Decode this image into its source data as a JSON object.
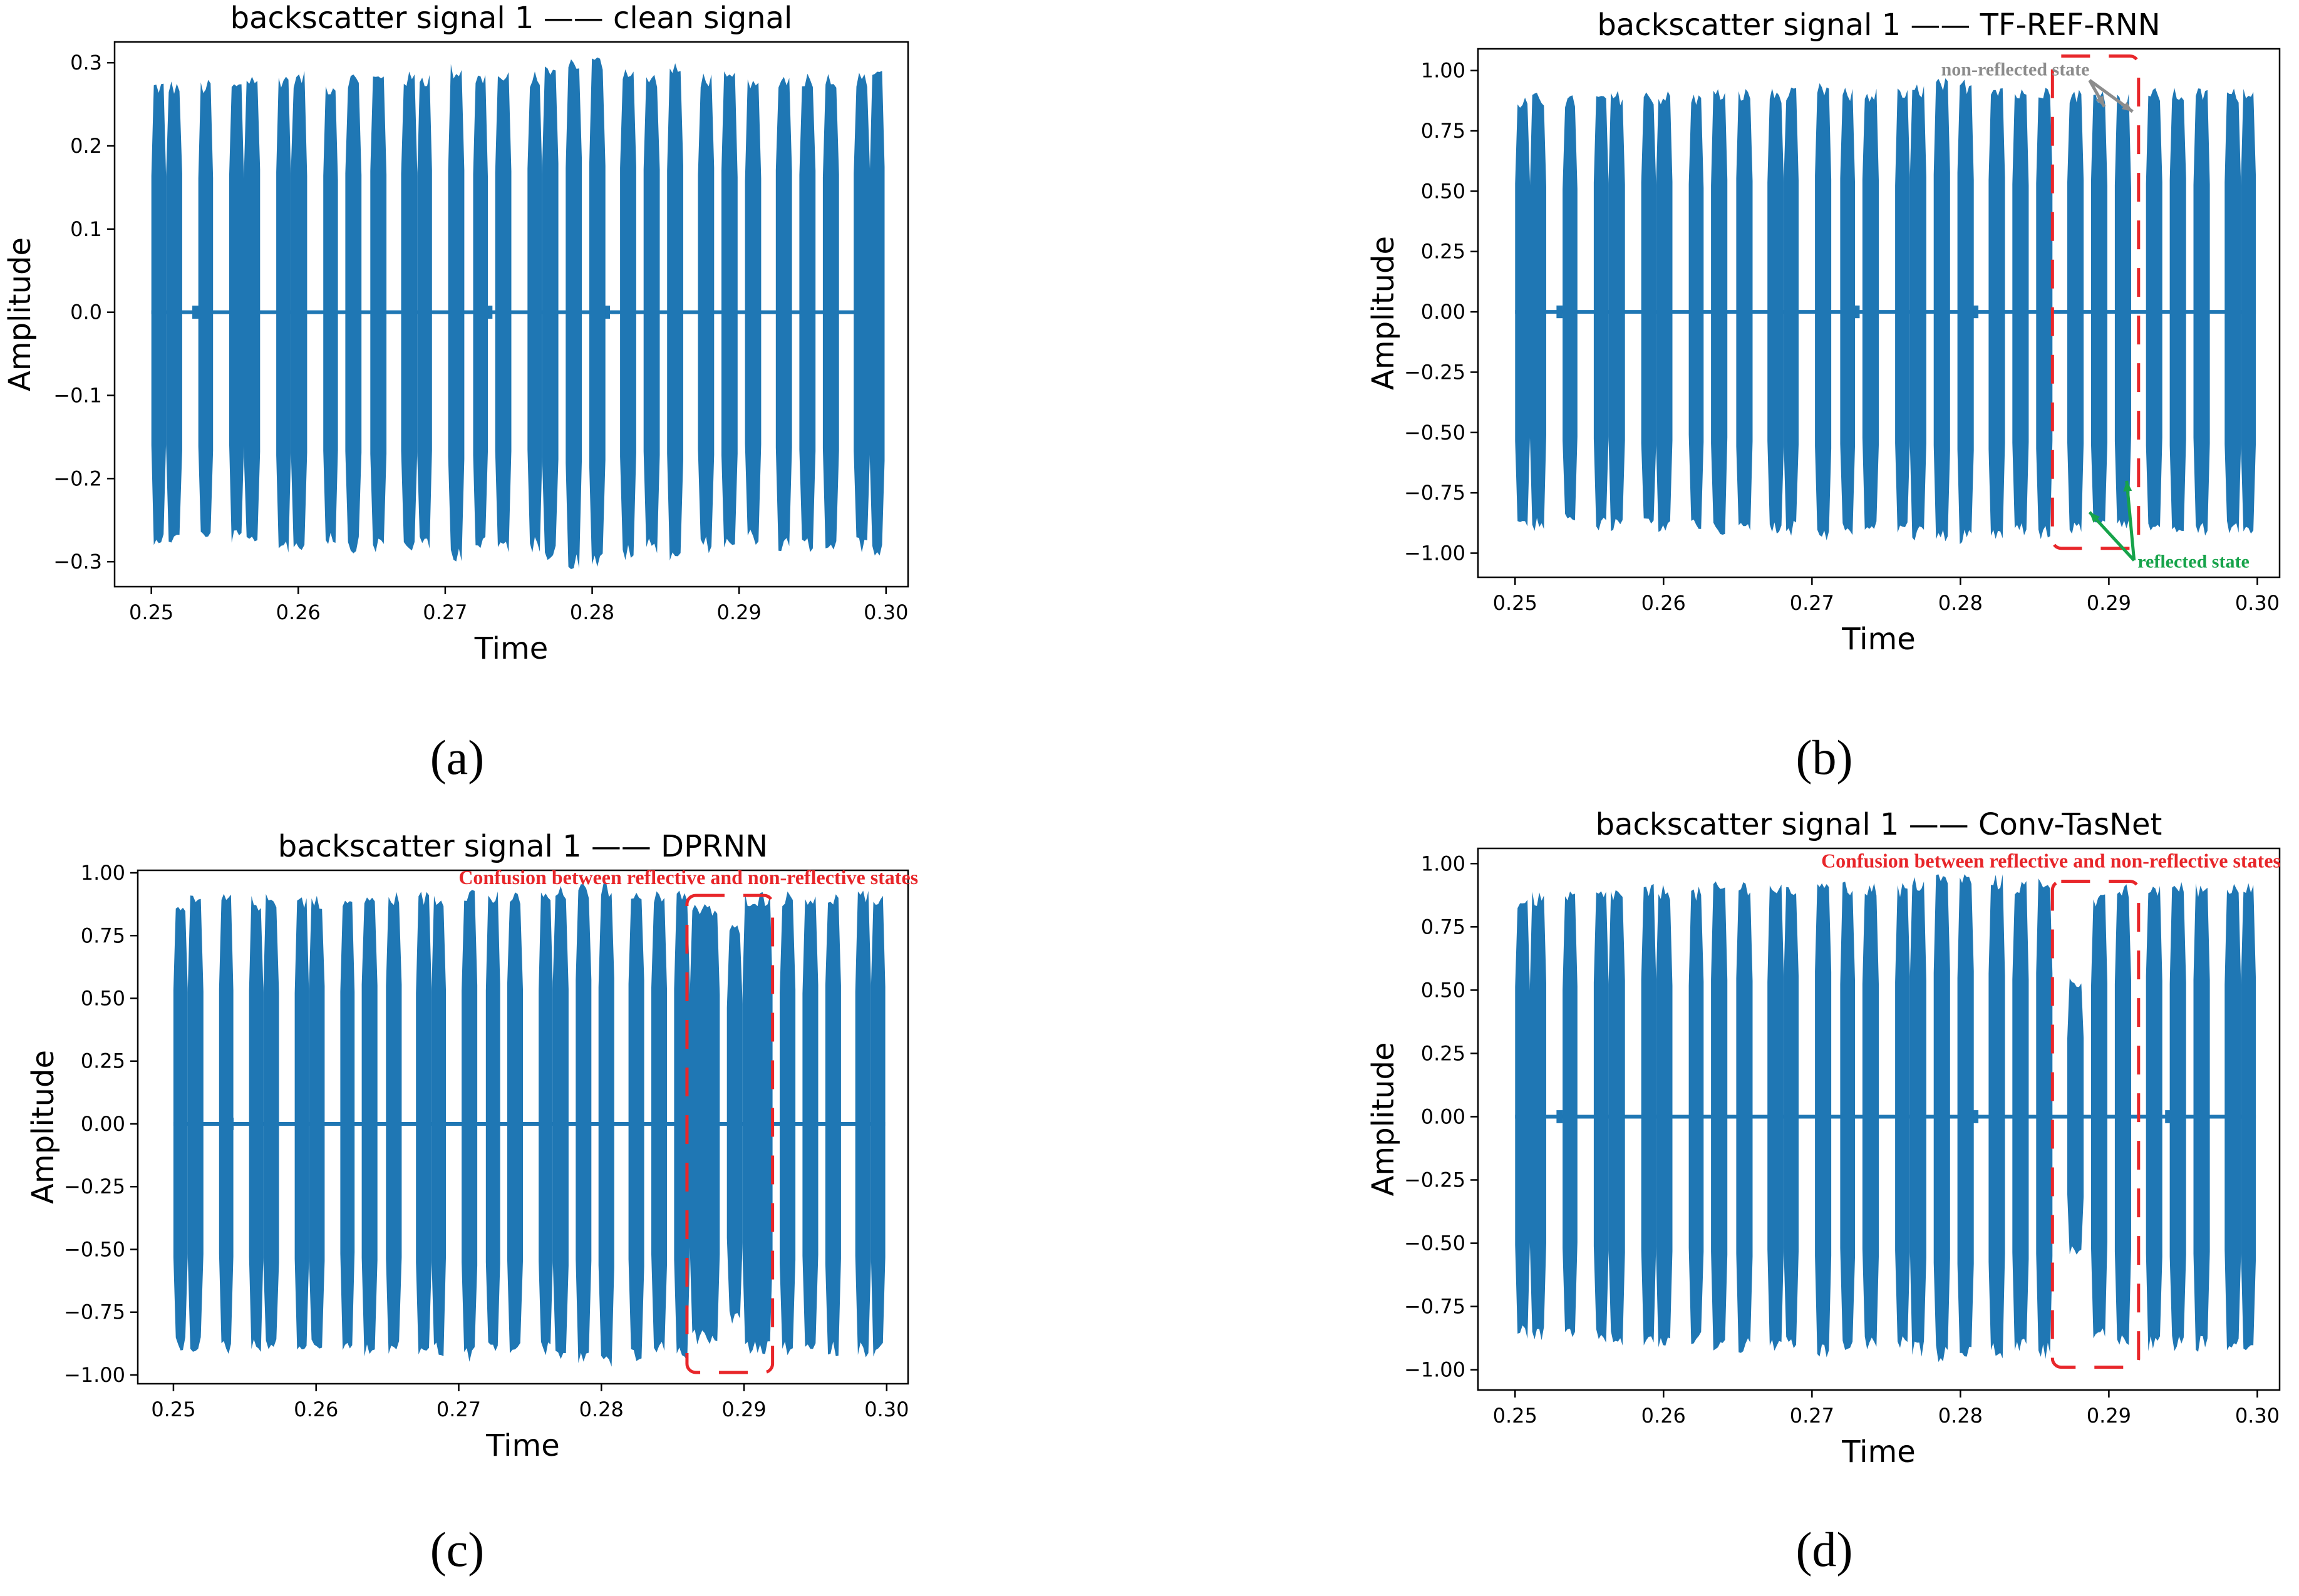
{
  "colors": {
    "signal": "#1f77b4",
    "annotation_red": "#e8262a",
    "annotation_green": "#16a34a",
    "annotation_grey": "#8c8c8c",
    "axis": "#000000"
  },
  "chart_data": [
    {
      "id": "a",
      "type": "line",
      "panel_label": "(a)",
      "title": "backscatter signal 1 —— clean signal",
      "xlabel": "Time",
      "ylabel": "Amplitude",
      "xlim": [
        0.2475,
        0.3015
      ],
      "ylim": [
        -0.33,
        0.325
      ],
      "xticks": [
        0.25,
        0.26,
        0.27,
        0.28,
        0.29,
        0.3
      ],
      "xtick_labels": [
        "0.25",
        "0.26",
        "0.27",
        "0.28",
        "0.29",
        "0.30"
      ],
      "yticks": [
        -0.3,
        -0.2,
        -0.1,
        0.0,
        0.1,
        0.2,
        0.3
      ],
      "ytick_labels": [
        "−0.3",
        "−0.2",
        "−0.1",
        "0.0",
        "0.1",
        "0.2",
        "0.3"
      ],
      "series": [
        {
          "name": "signal",
          "description": "pulse bursts [start, end, amplitude]",
          "bursts": [
            [
              0.25,
              0.251,
              0.28
            ],
            [
              0.251,
              0.2521,
              0.28
            ],
            [
              0.2532,
              0.2542,
              0.28
            ],
            [
              0.2553,
              0.2563,
              0.28
            ],
            [
              0.2563,
              0.2574,
              0.29
            ],
            [
              0.2585,
              0.2595,
              0.29
            ],
            [
              0.2595,
              0.2606,
              0.29
            ],
            [
              0.2617,
              0.2627,
              0.28
            ],
            [
              0.2632,
              0.2643,
              0.29
            ],
            [
              0.2649,
              0.266,
              0.29
            ],
            [
              0.267,
              0.2681,
              0.29
            ],
            [
              0.2681,
              0.2691,
              0.29
            ],
            [
              0.2702,
              0.2713,
              0.3
            ],
            [
              0.2719,
              0.2729,
              0.29
            ],
            [
              0.2734,
              0.2745,
              0.29
            ],
            [
              0.2756,
              0.2766,
              0.29
            ],
            [
              0.2766,
              0.2777,
              0.3
            ],
            [
              0.2782,
              0.2793,
              0.31
            ],
            [
              0.2798,
              0.2809,
              0.31
            ],
            [
              0.2819,
              0.283,
              0.3
            ],
            [
              0.2835,
              0.2846,
              0.29
            ],
            [
              0.2851,
              0.2862,
              0.3
            ],
            [
              0.2872,
              0.2883,
              0.29
            ],
            [
              0.2888,
              0.2899,
              0.29
            ],
            [
              0.2904,
              0.2915,
              0.28
            ],
            [
              0.2925,
              0.2936,
              0.29
            ],
            [
              0.2941,
              0.2952,
              0.29
            ],
            [
              0.2957,
              0.2968,
              0.29
            ],
            [
              0.2978,
              0.2989,
              0.29
            ],
            [
              0.2989,
              0.2999,
              0.3
            ]
          ],
          "baseline_noise": 0.005,
          "baseline_blips": [
            0.253,
            0.264,
            0.273,
            0.281
          ]
        }
      ],
      "annotations": []
    },
    {
      "id": "b",
      "type": "line",
      "panel_label": "(b)",
      "title": "backscatter signal 1 —— TF-REF-RNN",
      "xlabel": "Time",
      "ylabel": "Amplitude",
      "xlim": [
        0.2475,
        0.3015
      ],
      "ylim": [
        -1.1,
        1.09
      ],
      "xticks": [
        0.25,
        0.26,
        0.27,
        0.28,
        0.29,
        0.3
      ],
      "xtick_labels": [
        "0.25",
        "0.26",
        "0.27",
        "0.28",
        "0.29",
        "0.30"
      ],
      "yticks": [
        -1.0,
        -0.75,
        -0.5,
        -0.25,
        0.0,
        0.25,
        0.5,
        0.75,
        1.0
      ],
      "ytick_labels": [
        "−1.00",
        "−0.75",
        "−0.50",
        "−0.25",
        "0.00",
        "0.25",
        "0.50",
        "0.75",
        "1.00"
      ],
      "series": [
        {
          "name": "signal",
          "description": "pulse bursts [start, end, amplitude]",
          "bursts": [
            [
              0.25,
              0.251,
              0.9
            ],
            [
              0.251,
              0.2521,
              0.91
            ],
            [
              0.2532,
              0.2542,
              0.9
            ],
            [
              0.2553,
              0.2563,
              0.91
            ],
            [
              0.2563,
              0.2574,
              0.92
            ],
            [
              0.2585,
              0.2595,
              0.92
            ],
            [
              0.2595,
              0.2606,
              0.92
            ],
            [
              0.2617,
              0.2627,
              0.91
            ],
            [
              0.2632,
              0.2643,
              0.93
            ],
            [
              0.2649,
              0.266,
              0.93
            ],
            [
              0.267,
              0.2681,
              0.93
            ],
            [
              0.2681,
              0.2691,
              0.93
            ],
            [
              0.2702,
              0.2713,
              0.95
            ],
            [
              0.2719,
              0.2729,
              0.93
            ],
            [
              0.2734,
              0.2745,
              0.93
            ],
            [
              0.2756,
              0.2766,
              0.93
            ],
            [
              0.2766,
              0.2777,
              0.95
            ],
            [
              0.2782,
              0.2793,
              0.97
            ],
            [
              0.2798,
              0.2809,
              0.97
            ],
            [
              0.2819,
              0.283,
              0.96
            ],
            [
              0.2835,
              0.2846,
              0.93
            ],
            [
              0.2851,
              0.2862,
              0.95
            ],
            [
              0.2872,
              0.2883,
              0.93
            ],
            [
              0.2888,
              0.2899,
              0.93
            ],
            [
              0.2904,
              0.2915,
              0.91
            ],
            [
              0.2925,
              0.2936,
              0.93
            ],
            [
              0.2941,
              0.2952,
              0.93
            ],
            [
              0.2957,
              0.2968,
              0.93
            ],
            [
              0.2978,
              0.2989,
              0.93
            ],
            [
              0.2989,
              0.2999,
              0.95
            ]
          ],
          "baseline_noise": 0.01,
          "baseline_blips": [
            0.253,
            0.264,
            0.273,
            0.281
          ]
        }
      ],
      "annotations": [
        {
          "kind": "dashed_box",
          "x": [
            0.2862,
            0.292
          ],
          "y": [
            -0.98,
            1.06
          ]
        },
        {
          "kind": "label",
          "text": "non-reflected state",
          "color": "grey",
          "x": 0.2837,
          "y": 0.98
        },
        {
          "kind": "arrows",
          "color": "grey",
          "from": [
            0.2887,
            0.96
          ],
          "to": [
            [
              0.2897,
              0.85
            ],
            [
              0.2916,
              0.83
            ]
          ]
        },
        {
          "kind": "label",
          "text": "reflected state",
          "color": "green",
          "x": 0.2957,
          "y": -1.06
        },
        {
          "kind": "arrows",
          "color": "green",
          "from": [
            0.2917,
            -1.03
          ],
          "to": [
            [
              0.2887,
              -0.83
            ],
            [
              0.2912,
              -0.7
            ]
          ]
        }
      ]
    },
    {
      "id": "c",
      "type": "line",
      "panel_label": "(c)",
      "title": "backscatter signal 1 —— DPRNN",
      "xlabel": "Time",
      "ylabel": "Amplitude",
      "xlim": [
        0.2475,
        0.3015
      ],
      "ylim": [
        -1.035,
        1.01
      ],
      "xticks": [
        0.25,
        0.26,
        0.27,
        0.28,
        0.29,
        0.3
      ],
      "xtick_labels": [
        "0.25",
        "0.26",
        "0.27",
        "0.28",
        "0.29",
        "0.30"
      ],
      "yticks": [
        -1.0,
        -0.75,
        -0.5,
        -0.25,
        0.0,
        0.25,
        0.5,
        0.75,
        1.0
      ],
      "ytick_labels": [
        "−1.00",
        "−0.75",
        "−0.50",
        "−0.25",
        "0.00",
        "0.25",
        "0.50",
        "0.75",
        "1.00"
      ],
      "series": [
        {
          "name": "signal",
          "description": "pulse bursts [start, end, amplitude]",
          "bursts": [
            [
              0.25,
              0.251,
              0.91
            ],
            [
              0.251,
              0.2521,
              0.91
            ],
            [
              0.2532,
              0.2542,
              0.92
            ],
            [
              0.2553,
              0.2563,
              0.91
            ],
            [
              0.2563,
              0.2574,
              0.92
            ],
            [
              0.2585,
              0.2595,
              0.92
            ],
            [
              0.2595,
              0.2606,
              0.92
            ],
            [
              0.2617,
              0.2627,
              0.91
            ],
            [
              0.2632,
              0.2643,
              0.93
            ],
            [
              0.2649,
              0.266,
              0.93
            ],
            [
              0.267,
              0.2681,
              0.93
            ],
            [
              0.2681,
              0.2691,
              0.93
            ],
            [
              0.2702,
              0.2713,
              0.95
            ],
            [
              0.2719,
              0.2729,
              0.93
            ],
            [
              0.2734,
              0.2745,
              0.93
            ],
            [
              0.2756,
              0.2766,
              0.93
            ],
            [
              0.2766,
              0.2777,
              0.95
            ],
            [
              0.2782,
              0.2793,
              0.96
            ],
            [
              0.2798,
              0.2809,
              0.97
            ],
            [
              0.2819,
              0.283,
              0.96
            ],
            [
              0.2835,
              0.2846,
              0.93
            ],
            [
              0.2851,
              0.2862,
              0.95
            ],
            [
              0.2862,
              0.2883,
              0.88
            ],
            [
              0.2888,
              0.2899,
              0.8
            ],
            [
              0.2899,
              0.292,
              0.93
            ],
            [
              0.2925,
              0.2936,
              0.93
            ],
            [
              0.2941,
              0.2952,
              0.93
            ],
            [
              0.2957,
              0.2968,
              0.93
            ],
            [
              0.2978,
              0.2989,
              0.93
            ],
            [
              0.2989,
              0.2999,
              0.93
            ]
          ],
          "baseline_noise": 0.01,
          "baseline_blips": [
            0.254,
            0.279
          ]
        }
      ],
      "annotations": [
        {
          "kind": "dashed_box",
          "x": [
            0.286,
            0.292
          ],
          "y": [
            -0.99,
            0.91
          ]
        },
        {
          "kind": "label",
          "text": "Confusion between reflective and non-reflective states",
          "color": "red",
          "x": 0.2861,
          "y": 0.955
        }
      ]
    },
    {
      "id": "d",
      "type": "line",
      "panel_label": "(d)",
      "title": "backscatter signal 1 —— Conv-TasNet",
      "xlabel": "Time",
      "ylabel": "Amplitude",
      "xlim": [
        0.2475,
        0.3015
      ],
      "ylim": [
        -1.08,
        1.06
      ],
      "xticks": [
        0.25,
        0.26,
        0.27,
        0.28,
        0.29,
        0.3
      ],
      "xtick_labels": [
        "0.25",
        "0.26",
        "0.27",
        "0.28",
        "0.29",
        "0.30"
      ],
      "yticks": [
        -1.0,
        -0.75,
        -0.5,
        -0.25,
        0.0,
        0.25,
        0.5,
        0.75,
        1.0
      ],
      "ytick_labels": [
        "−1.00",
        "−0.75",
        "−0.50",
        "−0.25",
        "0.00",
        "0.25",
        "0.50",
        "0.75",
        "1.00"
      ],
      "series": [
        {
          "name": "signal",
          "description": "pulse bursts [start, end, amplitude]",
          "bursts": [
            [
              0.25,
              0.251,
              0.88
            ],
            [
              0.251,
              0.2521,
              0.89
            ],
            [
              0.2532,
              0.2542,
              0.89
            ],
            [
              0.2553,
              0.2563,
              0.9
            ],
            [
              0.2563,
              0.2574,
              0.91
            ],
            [
              0.2585,
              0.2595,
              0.92
            ],
            [
              0.2595,
              0.2606,
              0.92
            ],
            [
              0.2617,
              0.2627,
              0.91
            ],
            [
              0.2632,
              0.2643,
              0.93
            ],
            [
              0.2649,
              0.266,
              0.94
            ],
            [
              0.267,
              0.2681,
              0.93
            ],
            [
              0.2681,
              0.2691,
              0.93
            ],
            [
              0.2702,
              0.2713,
              0.96
            ],
            [
              0.2719,
              0.2729,
              0.93
            ],
            [
              0.2734,
              0.2745,
              0.93
            ],
            [
              0.2756,
              0.2766,
              0.93
            ],
            [
              0.2766,
              0.2777,
              0.95
            ],
            [
              0.2782,
              0.2793,
              0.97
            ],
            [
              0.2798,
              0.2809,
              0.97
            ],
            [
              0.2819,
              0.283,
              0.96
            ],
            [
              0.2835,
              0.2846,
              0.94
            ],
            [
              0.2851,
              0.2862,
              0.96
            ],
            [
              0.2872,
              0.2883,
              0.55
            ],
            [
              0.2888,
              0.2899,
              0.88
            ],
            [
              0.2904,
              0.2915,
              0.92
            ],
            [
              0.2925,
              0.2936,
              0.93
            ],
            [
              0.2941,
              0.2952,
              0.93
            ],
            [
              0.2957,
              0.2968,
              0.93
            ],
            [
              0.2978,
              0.2989,
              0.93
            ],
            [
              0.2989,
              0.2999,
              0.95
            ]
          ],
          "baseline_noise": 0.01,
          "baseline_blips": [
            0.253,
            0.264,
            0.281,
            0.294
          ]
        }
      ],
      "annotations": [
        {
          "kind": "dashed_box",
          "x": [
            0.2862,
            0.292
          ],
          "y": [
            -0.99,
            0.93
          ]
        },
        {
          "kind": "label",
          "text": "Confusion between reflective and non-reflective states",
          "color": "red",
          "x": 0.2861,
          "y": 0.985
        }
      ]
    }
  ]
}
